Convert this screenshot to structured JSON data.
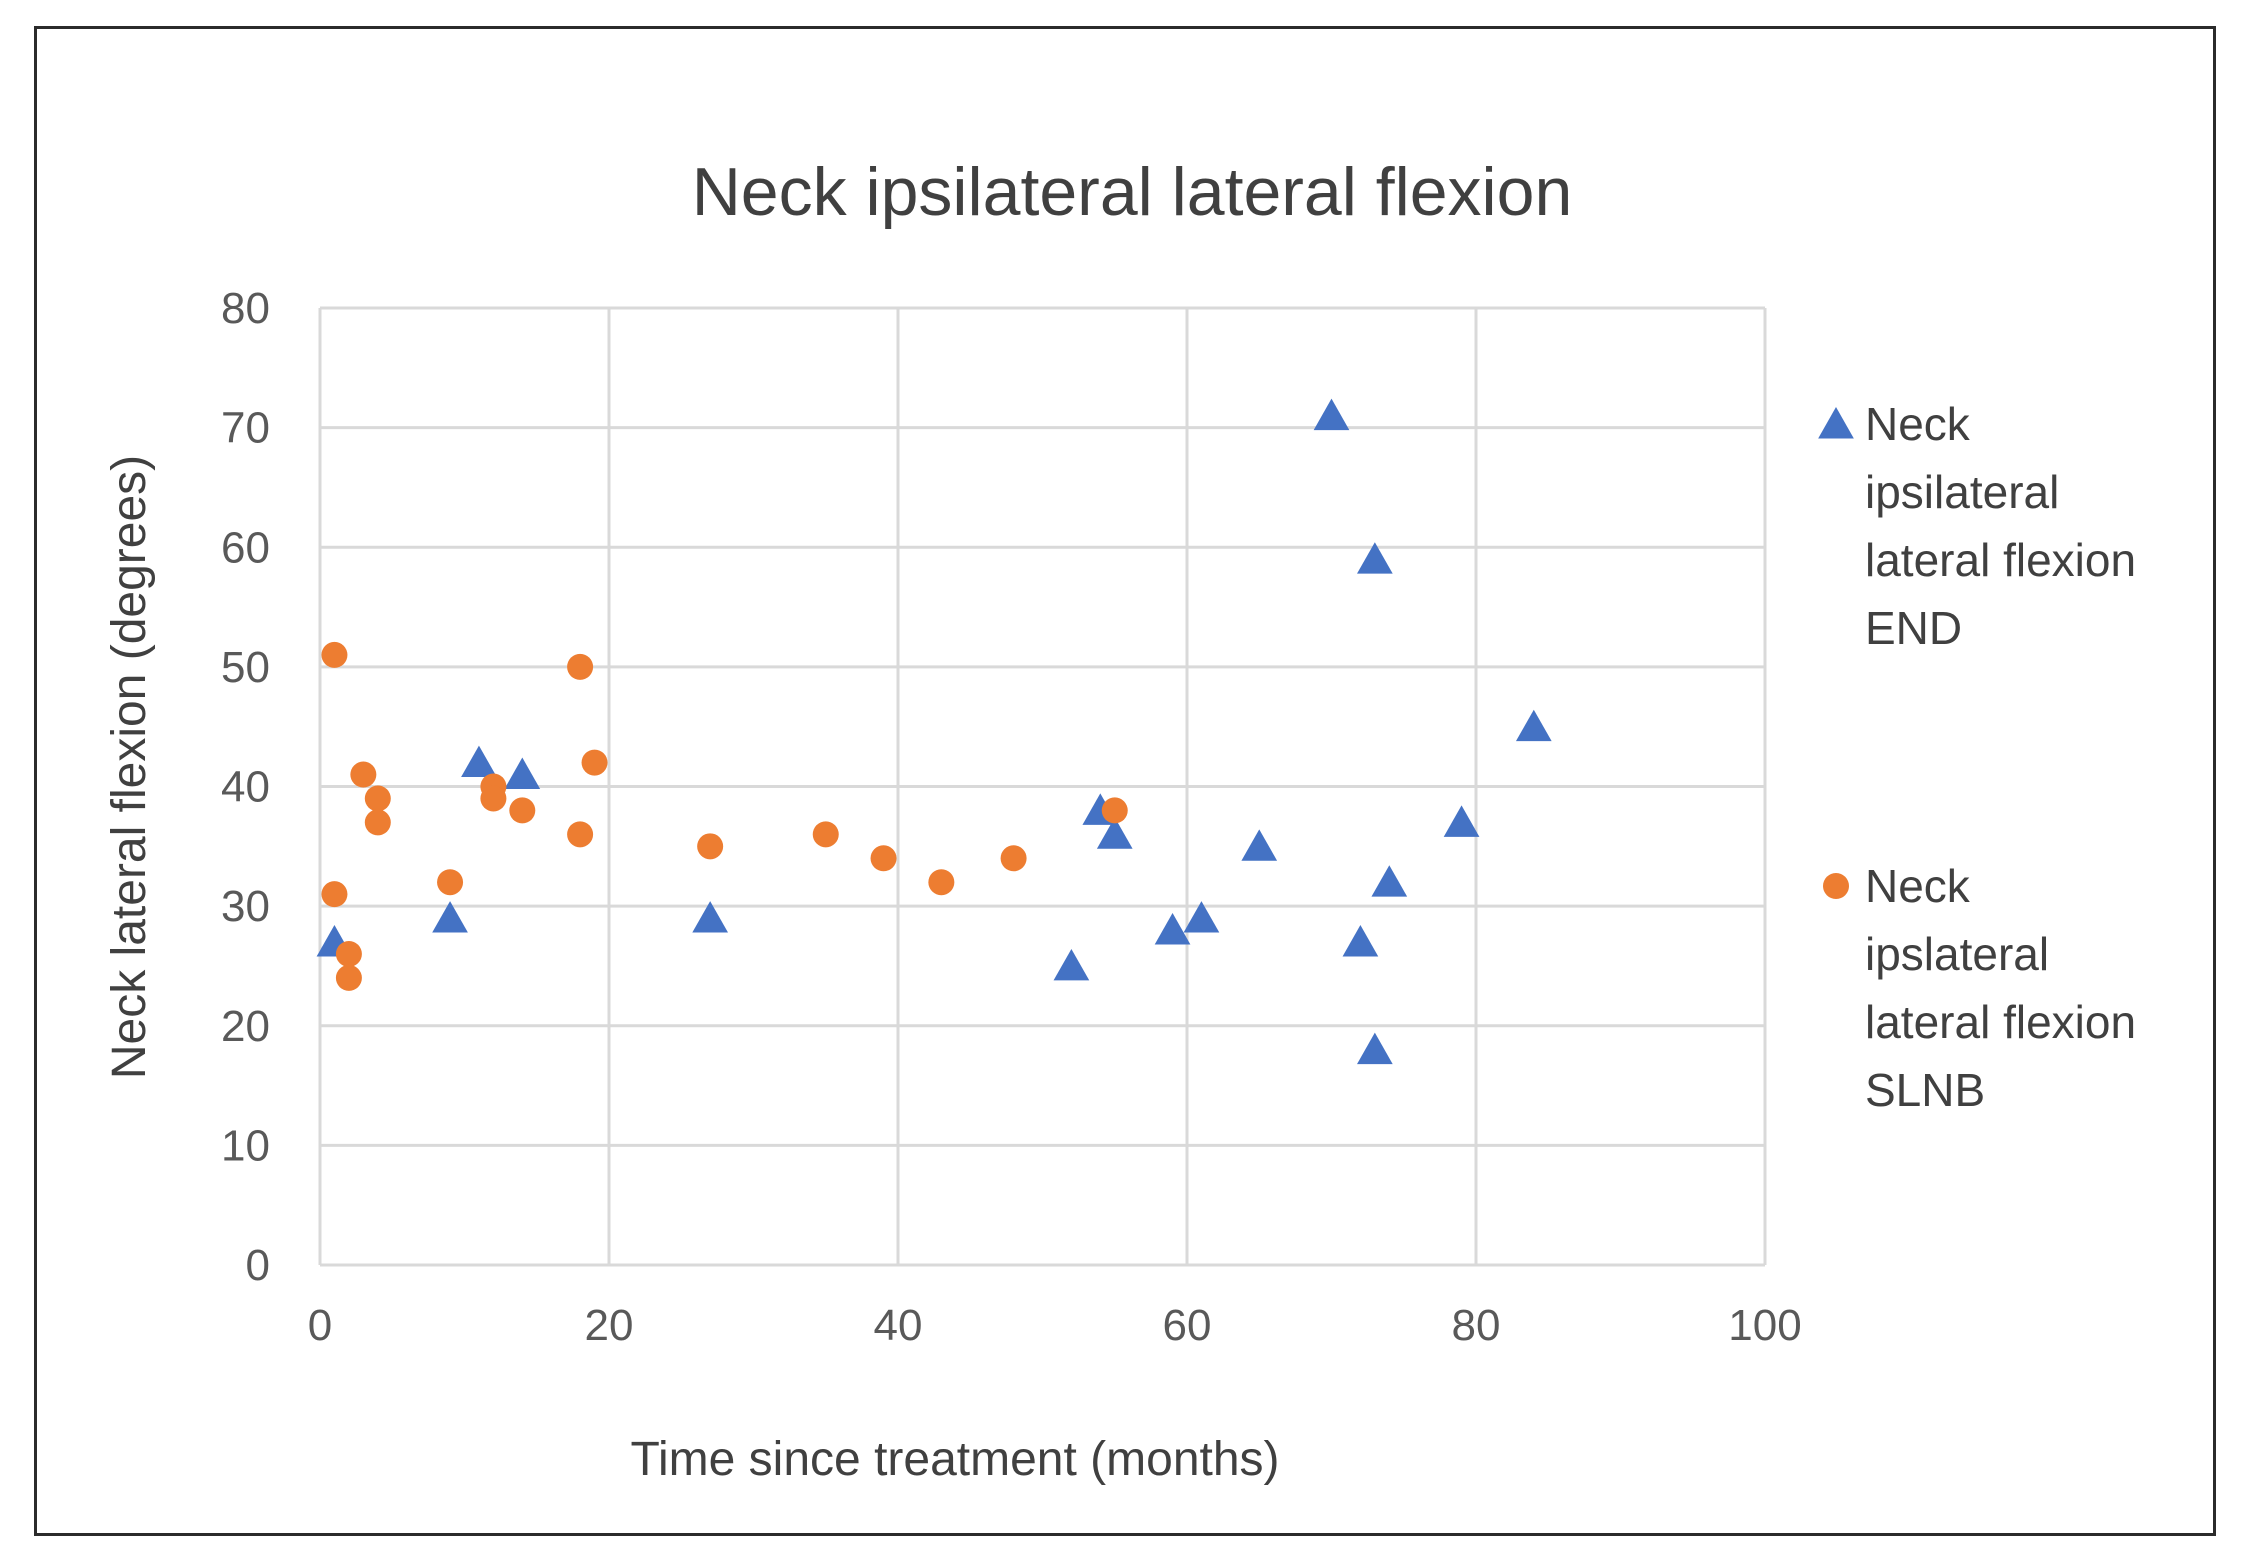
{
  "chart_data": {
    "type": "scatter",
    "title": "Neck ipsilateral lateral flexion",
    "xlabel": "Time since treatment (months)",
    "ylabel": "Neck lateral flexion (degrees)",
    "xlim": [
      0,
      100
    ],
    "ylim": [
      0,
      80
    ],
    "xticks": [
      0,
      20,
      40,
      60,
      80,
      100
    ],
    "yticks": [
      0,
      10,
      20,
      30,
      40,
      50,
      60,
      70,
      80
    ],
    "grid": true,
    "legend_position": "right",
    "series": [
      {
        "name": "Neck ipsilateral lateral flexion END",
        "legend_lines": [
          "Neck",
          "ipsilateral",
          "lateral flexion",
          "END"
        ],
        "marker": "triangle",
        "color": "#4472c4",
        "points": [
          [
            1,
            27
          ],
          [
            9,
            29
          ],
          [
            11,
            42
          ],
          [
            14,
            41
          ],
          [
            27,
            29
          ],
          [
            52,
            25
          ],
          [
            54,
            38
          ],
          [
            55,
            36
          ],
          [
            59,
            28
          ],
          [
            61,
            29
          ],
          [
            65,
            35
          ],
          [
            70,
            71
          ],
          [
            72,
            27
          ],
          [
            73,
            59
          ],
          [
            73,
            18
          ],
          [
            74,
            32
          ],
          [
            79,
            37
          ],
          [
            84,
            45
          ]
        ]
      },
      {
        "name": "Neck ipslateral lateral flexion SLNB",
        "legend_lines": [
          "Neck",
          "ipslateral",
          "lateral flexion",
          "SLNB"
        ],
        "marker": "circle",
        "color": "#ed7d31",
        "points": [
          [
            1,
            51
          ],
          [
            1,
            31
          ],
          [
            2,
            26
          ],
          [
            2,
            24
          ],
          [
            3,
            41
          ],
          [
            4,
            39
          ],
          [
            4,
            37
          ],
          [
            9,
            32
          ],
          [
            12,
            40
          ],
          [
            12,
            39
          ],
          [
            14,
            38
          ],
          [
            18,
            50
          ],
          [
            18,
            36
          ],
          [
            19,
            42
          ],
          [
            27,
            35
          ],
          [
            35,
            36
          ],
          [
            39,
            34
          ],
          [
            43,
            32
          ],
          [
            48,
            34
          ],
          [
            55,
            38
          ]
        ]
      }
    ]
  }
}
